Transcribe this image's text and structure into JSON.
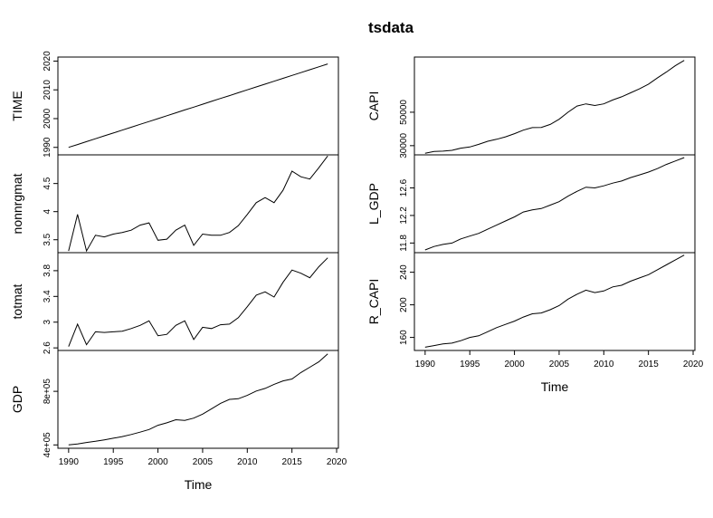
{
  "title": "tsdata",
  "chart_data": [
    {
      "type": "line",
      "panel": "left-1",
      "ylabel": "TIME",
      "xlabel": "",
      "x": [
        1990,
        1991,
        1992,
        1993,
        1994,
        1995,
        1996,
        1997,
        1998,
        1999,
        2000,
        2001,
        2002,
        2003,
        2004,
        2005,
        2006,
        2007,
        2008,
        2009,
        2010,
        2011,
        2012,
        2013,
        2014,
        2015,
        2016,
        2017,
        2018,
        2019
      ],
      "values": [
        1990,
        1991,
        1992,
        1993,
        1994,
        1995,
        1996,
        1997,
        1998,
        1999,
        2000,
        2001,
        2002,
        2003,
        2004,
        2005,
        2006,
        2007,
        2008,
        2009,
        2010,
        2011,
        2012,
        2013,
        2014,
        2015,
        2016,
        2017,
        2018,
        2019
      ],
      "ylim": [
        1987.4,
        2021.4
      ],
      "yticks": [
        1990,
        2000,
        2010,
        2020
      ]
    },
    {
      "type": "line",
      "panel": "left-2",
      "ylabel": "nonnrgmat",
      "xlabel": "",
      "x": [
        1990,
        1991,
        1992,
        1993,
        1994,
        1995,
        1996,
        1997,
        1998,
        1999,
        2000,
        2001,
        2002,
        2003,
        2004,
        2005,
        2006,
        2007,
        2008,
        2009,
        2010,
        2011,
        2012,
        2013,
        2014,
        2015,
        2016,
        2017,
        2018,
        2019
      ],
      "values": [
        3.3,
        3.95,
        3.3,
        3.58,
        3.55,
        3.6,
        3.63,
        3.67,
        3.76,
        3.8,
        3.49,
        3.51,
        3.67,
        3.76,
        3.4,
        3.6,
        3.58,
        3.58,
        3.63,
        3.75,
        3.95,
        4.16,
        4.25,
        4.16,
        4.38,
        4.72,
        4.62,
        4.58,
        4.78,
        4.99
      ],
      "ylim": [
        3.27,
        5.01
      ],
      "yticks": [
        3.5,
        4.0,
        4.5
      ]
    },
    {
      "type": "line",
      "panel": "left-3",
      "ylabel": "totmat",
      "xlabel": "",
      "x": [
        1990,
        1991,
        1992,
        1993,
        1994,
        1995,
        1996,
        1997,
        1998,
        1999,
        2000,
        2001,
        2002,
        2003,
        2004,
        2005,
        2006,
        2007,
        2008,
        2009,
        2010,
        2011,
        2012,
        2013,
        2014,
        2015,
        2016,
        2017,
        2018,
        2019
      ],
      "values": [
        2.62,
        2.97,
        2.65,
        2.85,
        2.84,
        2.85,
        2.86,
        2.9,
        2.95,
        3.02,
        2.79,
        2.81,
        2.95,
        3.02,
        2.73,
        2.92,
        2.9,
        2.96,
        2.97,
        3.07,
        3.24,
        3.42,
        3.47,
        3.39,
        3.62,
        3.81,
        3.76,
        3.69,
        3.86,
        4.0
      ],
      "ylim": [
        2.56,
        4.08
      ],
      "yticks": [
        2.6,
        3.0,
        3.4,
        3.8
      ]
    },
    {
      "type": "line",
      "panel": "left-4",
      "ylabel": "GDP",
      "xlabel": "Time",
      "x": [
        1990,
        1991,
        1992,
        1993,
        1994,
        1995,
        1996,
        1997,
        1998,
        1999,
        2000,
        2001,
        2002,
        2003,
        2004,
        2005,
        2006,
        2007,
        2008,
        2009,
        2010,
        2011,
        2012,
        2013,
        2014,
        2015,
        2016,
        2017,
        2018,
        2019
      ],
      "values": [
        400000,
        407000,
        418000,
        427000,
        438000,
        450000,
        462000,
        478000,
        495000,
        515000,
        547000,
        565000,
        588000,
        583000,
        600000,
        630000,
        670000,
        710000,
        740000,
        745000,
        770000,
        802000,
        822000,
        852000,
        878000,
        892000,
        940000,
        980000,
        1020000,
        1080000
      ],
      "ylim": [
        375000,
        1105000
      ],
      "yticks": [
        400000,
        800000
      ],
      "ytick_labels": [
        "4e+05",
        "8e+05"
      ],
      "xticks": [
        1990,
        1995,
        2000,
        2005,
        2010,
        2015,
        2020
      ]
    },
    {
      "type": "line",
      "panel": "right-1",
      "ylabel": "CAPI",
      "xlabel": "",
      "x": [
        1990,
        1991,
        1992,
        1993,
        1994,
        1995,
        1996,
        1997,
        1998,
        1999,
        2000,
        2001,
        2002,
        2003,
        2004,
        2005,
        2006,
        2007,
        2008,
        2009,
        2010,
        2011,
        2012,
        2013,
        2014,
        2015,
        2016,
        2017,
        2018,
        2019
      ],
      "values": [
        25500,
        26500,
        26700,
        27200,
        28500,
        29200,
        30800,
        32600,
        33800,
        35300,
        37200,
        39300,
        40800,
        40900,
        42700,
        45800,
        50000,
        53700,
        55000,
        54000,
        55000,
        57300,
        59200,
        61600,
        64000,
        66800,
        70500,
        74000,
        77800,
        81000
      ],
      "ylim": [
        24500,
        83000
      ],
      "yticks": [
        30000,
        50000
      ]
    },
    {
      "type": "line",
      "panel": "right-2",
      "ylabel": "L_GDP",
      "xlabel": "",
      "x": [
        1990,
        1991,
        1992,
        1993,
        1994,
        1995,
        1996,
        1997,
        1998,
        1999,
        2000,
        2001,
        2002,
        2003,
        2004,
        2005,
        2006,
        2007,
        2008,
        2009,
        2010,
        2011,
        2012,
        2013,
        2014,
        2015,
        2016,
        2017,
        2018,
        2019
      ],
      "values": [
        11.7,
        11.75,
        11.78,
        11.8,
        11.86,
        11.9,
        11.94,
        12.0,
        12.06,
        12.12,
        12.18,
        12.25,
        12.28,
        12.3,
        12.35,
        12.4,
        12.48,
        12.55,
        12.61,
        12.6,
        12.63,
        12.67,
        12.7,
        12.75,
        12.79,
        12.83,
        12.88,
        12.94,
        12.99,
        13.04
      ],
      "ylim": [
        11.66,
        13.08
      ],
      "yticks": [
        11.8,
        12.2,
        12.6
      ],
      "ytick_labels": [
        "11.8",
        "12.2",
        "12.6"
      ]
    },
    {
      "type": "line",
      "panel": "right-3",
      "ylabel": "R_CAPI",
      "xlabel": "Time",
      "x": [
        1990,
        1991,
        1992,
        1993,
        1994,
        1995,
        1996,
        1997,
        1998,
        1999,
        2000,
        2001,
        2002,
        2003,
        2004,
        2005,
        2006,
        2007,
        2008,
        2009,
        2010,
        2011,
        2012,
        2013,
        2014,
        2015,
        2016,
        2017,
        2018,
        2019
      ],
      "values": [
        148,
        150,
        152,
        153,
        156,
        160,
        162,
        167,
        172,
        176,
        180,
        185,
        189,
        190,
        194,
        199,
        207,
        213,
        218,
        215,
        217,
        222,
        224,
        229,
        233,
        237,
        243,
        249,
        255,
        261
      ],
      "ylim": [
        144,
        264
      ],
      "yticks": [
        160,
        200,
        240
      ],
      "xticks": [
        1990,
        1995,
        2000,
        2005,
        2010,
        2015,
        2020
      ]
    }
  ]
}
